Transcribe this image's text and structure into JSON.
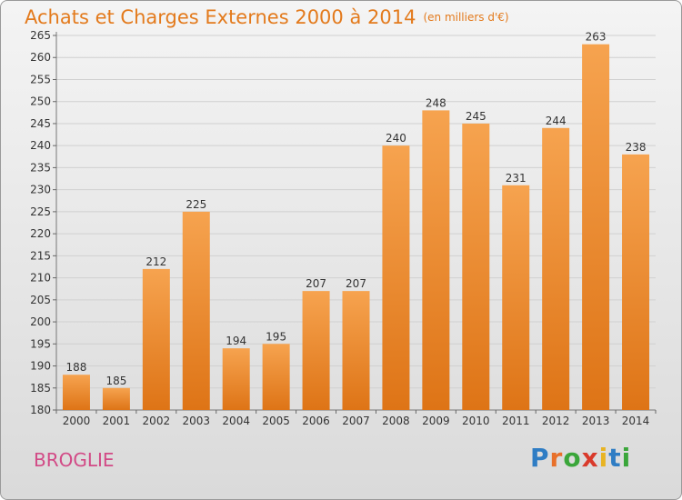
{
  "colors": {
    "title": "#e37a1c",
    "bar_top": "#f6a34f",
    "bar_bottom": "#de7416",
    "place": "#d24a86",
    "axis_text": "#333333",
    "grid": "#d0d0d0"
  },
  "header": {
    "title": "Achats et Charges Externes 2000 à 2014",
    "unit": "(en milliers d'€)"
  },
  "footer": {
    "place": "BROGLIE",
    "brand": {
      "text": "Proxiti",
      "letters": [
        {
          "ch": "P",
          "color": "#2f7dc4"
        },
        {
          "ch": "r",
          "color": "#e8702a"
        },
        {
          "ch": "o",
          "color": "#3aa63a"
        },
        {
          "ch": "x",
          "color": "#d93a2b"
        },
        {
          "ch": "i",
          "color": "#e8b423"
        },
        {
          "ch": "t",
          "color": "#2f7dc4"
        },
        {
          "ch": "i",
          "color": "#3aa63a"
        }
      ]
    }
  },
  "chart_data": {
    "type": "bar",
    "title": "Achats et Charges Externes 2000 à 2014",
    "subtitle": "(en milliers d'€)",
    "xlabel": "",
    "ylabel": "",
    "categories": [
      "2000",
      "2001",
      "2002",
      "2003",
      "2004",
      "2005",
      "2006",
      "2007",
      "2008",
      "2009",
      "2010",
      "2011",
      "2012",
      "2013",
      "2014"
    ],
    "values": [
      188,
      185,
      212,
      225,
      194,
      195,
      207,
      207,
      240,
      248,
      245,
      231,
      244,
      263,
      238
    ],
    "ylim": [
      180,
      265
    ],
    "yticks": [
      180,
      185,
      190,
      195,
      200,
      205,
      210,
      215,
      220,
      225,
      230,
      235,
      240,
      245,
      250,
      255,
      260,
      265
    ],
    "grid": true,
    "data_labels": true
  }
}
